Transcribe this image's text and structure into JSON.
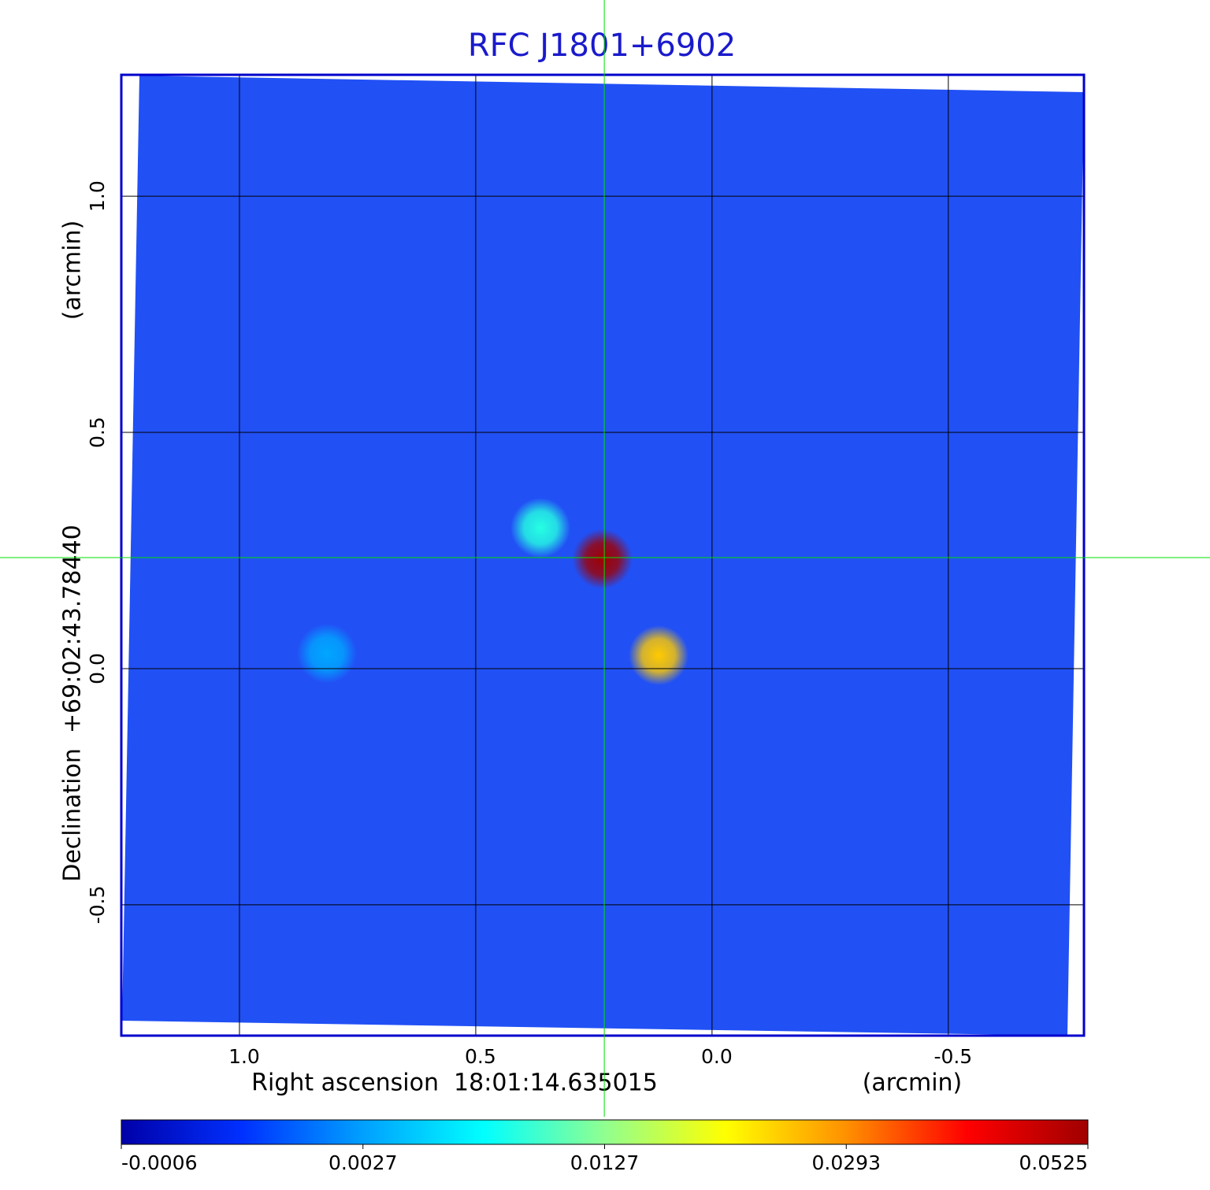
{
  "chart_data": {
    "type": "image",
    "title": "RFC J1801+6902",
    "x_label": "Right ascension  18:01:14.635015",
    "x_unit": "(arcmin)",
    "y_label": "Declination  +69:02:43.78440",
    "y_unit": "(arcmin)",
    "xlim": [
      1.25,
      -0.787
    ],
    "ylim": [
      -0.777,
      1.257
    ],
    "xticks": [
      {
        "value": 1,
        "label": "1.0"
      },
      0.5,
      {
        "value": 0,
        "label": "0.0"
      },
      -0.5
    ],
    "yticks": [
      {
        "value": 1,
        "label": "1.0"
      },
      0.5,
      {
        "value": 0,
        "label": "0.0"
      },
      -0.5
    ],
    "grid": true,
    "background_color": "#2150f5",
    "crosshair": {
      "x": 0.228,
      "y": 0.235,
      "color": "#00e000"
    },
    "sources": [
      {
        "x": 0.363,
        "y": 0.298,
        "peak": 0.009
      },
      {
        "x": 0.232,
        "y": 0.232,
        "peak": 0.0525
      },
      {
        "x": 0.113,
        "y": 0.028,
        "peak": 0.025
      },
      {
        "x": 0.815,
        "y": 0.032,
        "peak": 0.003
      }
    ],
    "colorbar": {
      "ticks": [
        -0.0006,
        0.0027,
        0.0127,
        0.0293,
        0.0525
      ],
      "colors": [
        "#0000a8",
        "#0030ff",
        "#00a0ff",
        "#00ffff",
        "#90ff90",
        "#ffff00",
        "#ff9000",
        "#ff0000",
        "#a00000"
      ]
    }
  }
}
